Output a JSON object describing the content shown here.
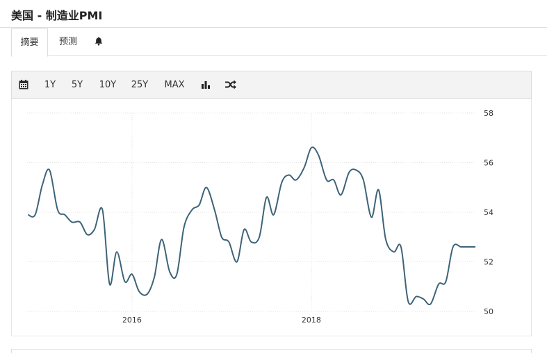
{
  "header": {
    "title": "美国 - 制造业PMI"
  },
  "tabs": [
    {
      "label": "摘要",
      "active": true
    },
    {
      "label": "预测",
      "active": false
    },
    {
      "icon": "bell-icon"
    }
  ],
  "toolbar": {
    "calendar_icon": "calendar-icon",
    "ranges": [
      "1Y",
      "5Y",
      "10Y",
      "25Y",
      "MAX"
    ],
    "bar_chart_icon": "bar-chart-icon",
    "compare_icon": "shuffle-icon"
  },
  "colors": {
    "line": "#3d6378",
    "grid": "#e3e3e3",
    "toolbar_bg": "#f3f3f3"
  },
  "chart_data": {
    "type": "line",
    "title": "",
    "xlabel": "",
    "ylabel": "",
    "ylim": [
      50,
      58
    ],
    "xlim": [
      2014.83,
      2019.83
    ],
    "y_ticks": [
      50,
      52,
      54,
      56,
      58
    ],
    "y_tick_labels": [
      "50",
      "52",
      "54",
      "56",
      "58"
    ],
    "x_ticks": [
      2016,
      2018
    ],
    "x_tick_labels": [
      "2016",
      "2018"
    ],
    "y_axis_side": "right",
    "grid": true,
    "series": [
      {
        "x": [
          2014.84,
          2014.92,
          2015.0,
          2015.08,
          2015.17,
          2015.25,
          2015.33,
          2015.42,
          2015.5,
          2015.58,
          2015.67,
          2015.75,
          2015.83,
          2015.92,
          2016.0,
          2016.08,
          2016.17,
          2016.25,
          2016.33,
          2016.42,
          2016.5,
          2016.58,
          2016.67,
          2016.75,
          2016.83,
          2016.92,
          2017.0,
          2017.08,
          2017.17,
          2017.25,
          2017.33,
          2017.42,
          2017.5,
          2017.58,
          2017.67,
          2017.75,
          2017.83,
          2017.92,
          2018.0,
          2018.08,
          2018.17,
          2018.25,
          2018.33,
          2018.42,
          2018.5,
          2018.58,
          2018.67,
          2018.75,
          2018.83,
          2018.92,
          2019.0,
          2019.08,
          2019.17,
          2019.25,
          2019.33,
          2019.42,
          2019.5,
          2019.58,
          2019.67,
          2019.75,
          2019.83
        ],
        "y": [
          53.9,
          53.9,
          55.1,
          55.7,
          54.1,
          53.9,
          53.6,
          53.6,
          53.1,
          53.3,
          54.1,
          51.1,
          52.4,
          51.2,
          51.5,
          50.8,
          50.7,
          51.4,
          52.9,
          51.6,
          51.5,
          53.4,
          54.1,
          54.3,
          55.0,
          54.1,
          53.0,
          52.8,
          52.0,
          53.3,
          52.8,
          53.0,
          54.6,
          53.9,
          55.2,
          55.5,
          55.3,
          55.8,
          56.6,
          56.3,
          55.3,
          55.3,
          54.7,
          55.6,
          55.7,
          55.3,
          53.8,
          54.9,
          52.9,
          52.4,
          52.6,
          50.4,
          50.6,
          50.5,
          50.3,
          51.1,
          51.2,
          52.6,
          52.6,
          52.6,
          52.6
        ]
      }
    ]
  }
}
